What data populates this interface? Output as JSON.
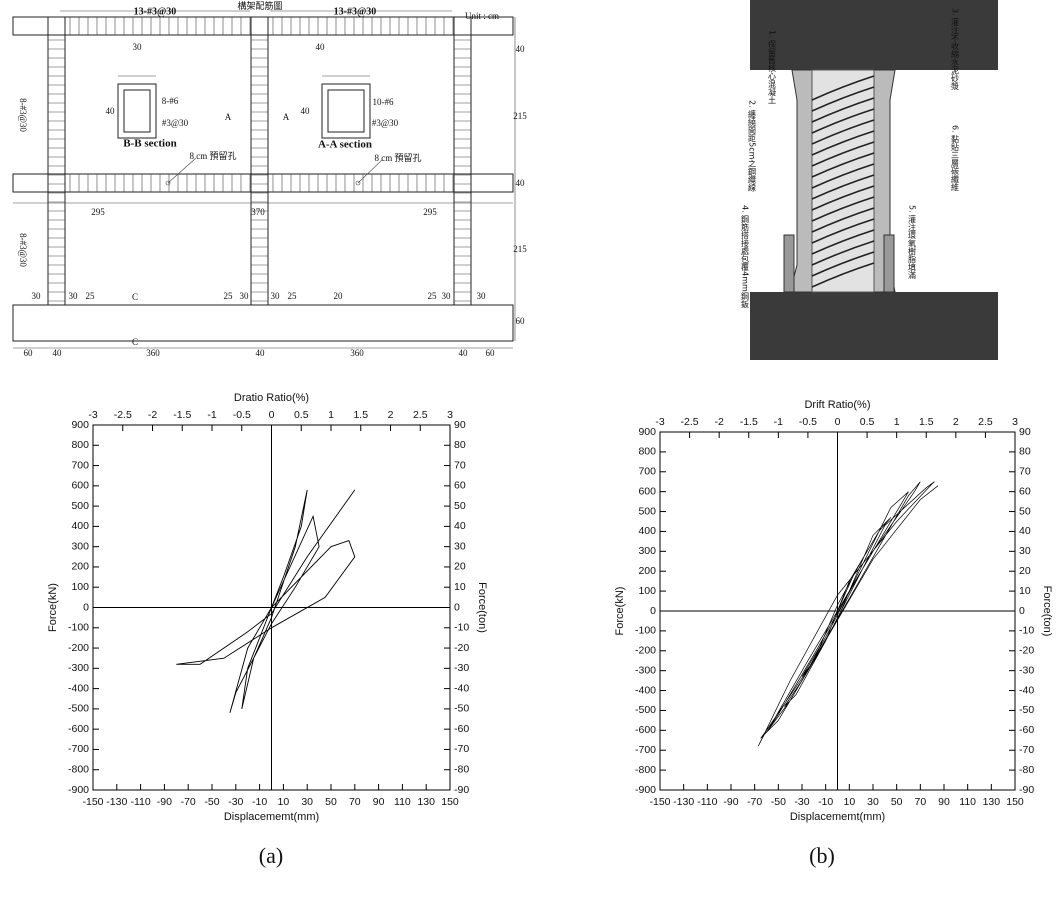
{
  "frame_drawing": {
    "title": "構架配筋圖",
    "unit": "Unit : cm",
    "labels": [
      "13-#3@30",
      "13-#3@30",
      "30",
      "40",
      "8-#6",
      "#3@30",
      "B-B section",
      "40",
      "40",
      "10-#6",
      "#3@30",
      "A-A section",
      "8 cm 預留孔",
      "8 cm 預留孔",
      "295",
      "370",
      "295",
      "8-#3@30",
      "8-#3@30",
      "40",
      "215",
      "40",
      "215",
      "60",
      "60",
      "40",
      "360",
      "40",
      "360",
      "40",
      "60",
      "30",
      "30",
      "25",
      "25",
      "30",
      "30",
      "25",
      "20",
      "25",
      "30",
      "30",
      "A",
      "A",
      "C",
      "C"
    ]
  },
  "repair_diagram": {
    "labels": [
      "1. 保留舊核心混凝土",
      "2. 纏繞間距5cm之鋼纜線",
      "3. 灌注不收縮水泥砂漿",
      "4. 鋼筋搭接處包覆4mm鋼鈑",
      "5. 灌注環氧樹脂填滿",
      "6. 黏貼三層碳纖維"
    ]
  },
  "chart_data": [
    {
      "type": "line",
      "title": "Dratio Ratio(%)",
      "x_label": "Displacememt(mm)",
      "y_label": "Force(kN)",
      "y2_label": "Force(ton)",
      "color": "#000000",
      "x": [
        0,
        10,
        25,
        30,
        20,
        0,
        -15,
        -25,
        -20,
        0,
        35,
        40,
        20,
        0,
        -30,
        -35,
        -20,
        0,
        50,
        65,
        70,
        45,
        0,
        -40,
        -80,
        -60,
        -20,
        0,
        30,
        70
      ],
      "values": [
        0,
        150,
        400,
        580,
        300,
        -50,
        -250,
        -500,
        -300,
        0,
        450,
        300,
        100,
        -80,
        -420,
        -520,
        -200,
        0,
        300,
        330,
        250,
        50,
        -100,
        -250,
        -280,
        -280,
        -120,
        -30,
        250,
        580
      ],
      "xlim": [
        -150,
        150
      ],
      "xticks": [
        -150,
        -130,
        -110,
        -90,
        -70,
        -50,
        -30,
        -10,
        10,
        30,
        50,
        70,
        90,
        110,
        130,
        150
      ],
      "x2lim": [
        -3,
        3
      ],
      "x2ticks": [
        -3,
        -2.5,
        -2,
        -1.5,
        -1,
        -0.5,
        0,
        0.5,
        1,
        1.5,
        2,
        2.5,
        3
      ],
      "ylim": [
        -900,
        900
      ],
      "yticks": [
        -900,
        -800,
        -700,
        -600,
        -500,
        -400,
        -300,
        -200,
        -100,
        0,
        100,
        200,
        300,
        400,
        500,
        600,
        700,
        800,
        900
      ],
      "y2lim": [
        -90,
        90
      ],
      "y2ticks": [
        -90,
        -80,
        -70,
        -60,
        -50,
        -40,
        -30,
        -20,
        -10,
        0,
        10,
        20,
        30,
        40,
        50,
        60,
        70,
        80,
        90
      ]
    },
    {
      "type": "line",
      "title": "Drift Ratio(%)",
      "x_label": "Displacememt(mm)",
      "y_label": "Force(kN)",
      "y2_label": "Force(ton)",
      "color": "#000000",
      "x": [
        0,
        15,
        30,
        20,
        0,
        -15,
        -30,
        -20,
        0,
        30,
        45,
        35,
        10,
        -10,
        -35,
        -45,
        -30,
        0,
        45,
        60,
        50,
        20,
        -20,
        -50,
        -60,
        -40,
        0,
        60,
        70,
        65,
        30,
        -25,
        -55,
        -65,
        -50,
        -10,
        40,
        75,
        82,
        80,
        50,
        0,
        -40,
        -62,
        -67,
        -60,
        -20,
        30,
        70,
        85
      ],
      "values": [
        0,
        200,
        350,
        250,
        30,
        -180,
        -330,
        -250,
        -40,
        380,
        470,
        400,
        150,
        -150,
        -420,
        -480,
        -350,
        -20,
        520,
        600,
        500,
        200,
        -220,
        -520,
        -610,
        -450,
        -40,
        580,
        650,
        600,
        300,
        -250,
        -560,
        -640,
        -550,
        -150,
        430,
        620,
        650,
        640,
        450,
        80,
        -350,
        -620,
        -680,
        -600,
        -250,
        260,
        560,
        630
      ],
      "xlim": [
        -150,
        150
      ],
      "xticks": [
        -150,
        -130,
        -110,
        -90,
        -70,
        -50,
        -30,
        -10,
        10,
        30,
        50,
        70,
        90,
        110,
        130,
        150
      ],
      "x2lim": [
        -3,
        3
      ],
      "x2ticks": [
        -3,
        -2.5,
        -2,
        -1.5,
        -1,
        -0.5,
        0,
        0.5,
        1,
        1.5,
        2,
        2.5,
        3
      ],
      "ylim": [
        -900,
        900
      ],
      "yticks": [
        -900,
        -800,
        -700,
        -600,
        -500,
        -400,
        -300,
        -200,
        -100,
        0,
        100,
        200,
        300,
        400,
        500,
        600,
        700,
        800,
        900
      ],
      "y2lim": [
        -90,
        90
      ],
      "y2ticks": [
        -90,
        -80,
        -70,
        -60,
        -50,
        -40,
        -30,
        -20,
        -10,
        0,
        10,
        20,
        30,
        40,
        50,
        60,
        70,
        80,
        90
      ]
    }
  ],
  "captions": [
    "(a)",
    "(b)"
  ]
}
